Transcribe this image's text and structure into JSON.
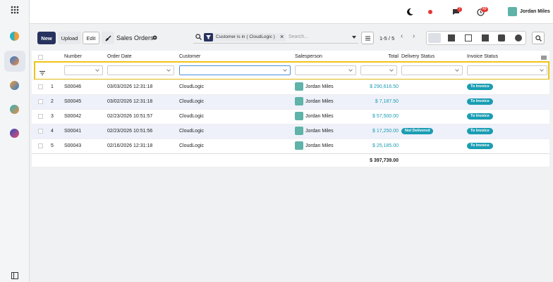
{
  "topbar": {
    "user": "Jordan Miles",
    "chat_badge": "7",
    "activity_badge": "49"
  },
  "toolbar": {
    "new": "New",
    "upload": "Upload",
    "edit": "Edit",
    "title": "Sales Orders",
    "filter": "Customer is in ( CloudLogic )",
    "search_placeholder": "Search...",
    "pager": "1-5 / 5"
  },
  "table": {
    "headers": [
      "Number",
      "Order Date",
      "Customer",
      "Salesperson",
      "Total",
      "Delivery Status",
      "Invoice Status"
    ],
    "rows": [
      {
        "index": "1",
        "number": "S00046",
        "date": "03/03/2026 12:31:18",
        "customer": "CloudLogic",
        "salesperson": "Jordan Miles",
        "total": "$ 290,616.50",
        "invoice": "To Invoice"
      },
      {
        "index": "2",
        "number": "S00045",
        "date": "03/02/2026 12:31:18",
        "customer": "CloudLogic",
        "salesperson": "Jordan Miles",
        "total": "$ 7,187.50",
        "invoice": "To Invoice"
      },
      {
        "index": "3",
        "number": "S00042",
        "date": "02/23/2026 10:51:57",
        "customer": "CloudLogic",
        "salesperson": "Jordan Miles",
        "total": "$ 57,500.00",
        "invoice": "To Invoice"
      },
      {
        "index": "4",
        "number": "S00041",
        "date": "02/23/2026 10:51:56",
        "customer": "CloudLogic",
        "salesperson": "Jordan Miles",
        "total": "$ 17,250.00",
        "delivery": "Not Delivered",
        "invoice": "To Invoice"
      },
      {
        "index": "5",
        "number": "S00043",
        "date": "02/16/2026 12:31:18",
        "customer": "CloudLogic",
        "salesperson": "Jordan Miles",
        "total": "$ 25,185.00",
        "invoice": "To Invoice"
      }
    ],
    "sum": "$ 397,739.00"
  }
}
